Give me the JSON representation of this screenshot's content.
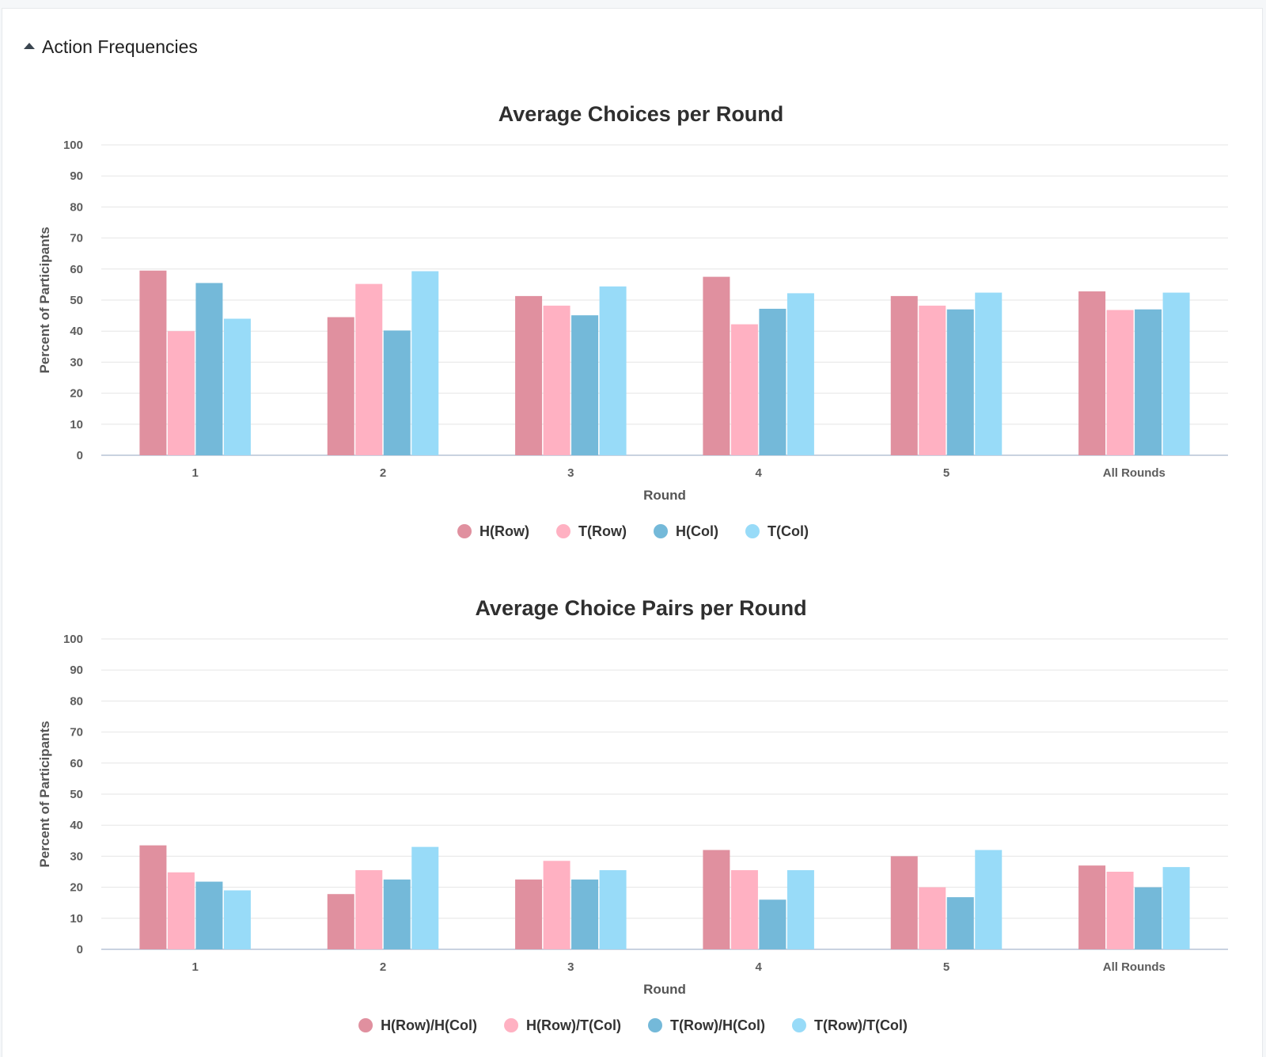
{
  "section": {
    "title": "Action Frequencies",
    "expanded": true
  },
  "chart_data": [
    {
      "type": "bar",
      "title": "Average Choices per Round",
      "xlabel": "Round",
      "ylabel": "Percent of Participants",
      "ylim": [
        0,
        100
      ],
      "yticks": [
        0,
        10,
        20,
        30,
        40,
        50,
        60,
        70,
        80,
        90,
        100
      ],
      "grid": true,
      "legend_position": "bottom",
      "categories": [
        "1",
        "2",
        "3",
        "4",
        "5",
        "All Rounds"
      ],
      "series": [
        {
          "name": "H(Row)",
          "color": "#e0909f",
          "values": [
            59.5,
            44.5,
            51.3,
            57.5,
            51.3,
            52.8
          ]
        },
        {
          "name": "T(Row)",
          "color": "#ffb1c2",
          "values": [
            40,
            55.2,
            48.2,
            42.2,
            48.2,
            46.8
          ]
        },
        {
          "name": "H(Col)",
          "color": "#74b9d9",
          "values": [
            55.5,
            40.2,
            45.1,
            47.2,
            47,
            47
          ]
        },
        {
          "name": "T(Col)",
          "color": "#98dbf8",
          "values": [
            44,
            59.3,
            54.4,
            52.2,
            52.4,
            52.4
          ]
        }
      ]
    },
    {
      "type": "bar",
      "title": "Average Choice Pairs per Round",
      "xlabel": "Round",
      "ylabel": "Percent of Participants",
      "ylim": [
        0,
        100
      ],
      "yticks": [
        0,
        10,
        20,
        30,
        40,
        50,
        60,
        70,
        80,
        90,
        100
      ],
      "grid": true,
      "legend_position": "bottom",
      "categories": [
        "1",
        "2",
        "3",
        "4",
        "5",
        "All Rounds"
      ],
      "series": [
        {
          "name": "H(Row)/H(Col)",
          "color": "#e0909f",
          "values": [
            33.5,
            17.8,
            22.5,
            32,
            30,
            27
          ]
        },
        {
          "name": "H(Row)/T(Col)",
          "color": "#ffb1c2",
          "values": [
            24.8,
            25.5,
            28.5,
            25.5,
            20,
            25
          ]
        },
        {
          "name": "T(Row)/H(Col)",
          "color": "#74b9d9",
          "values": [
            21.8,
            22.5,
            22.5,
            16,
            16.8,
            20
          ]
        },
        {
          "name": "T(Row)/T(Col)",
          "color": "#98dbf8",
          "values": [
            19,
            33,
            25.5,
            25.5,
            32,
            26.5
          ]
        }
      ]
    }
  ]
}
